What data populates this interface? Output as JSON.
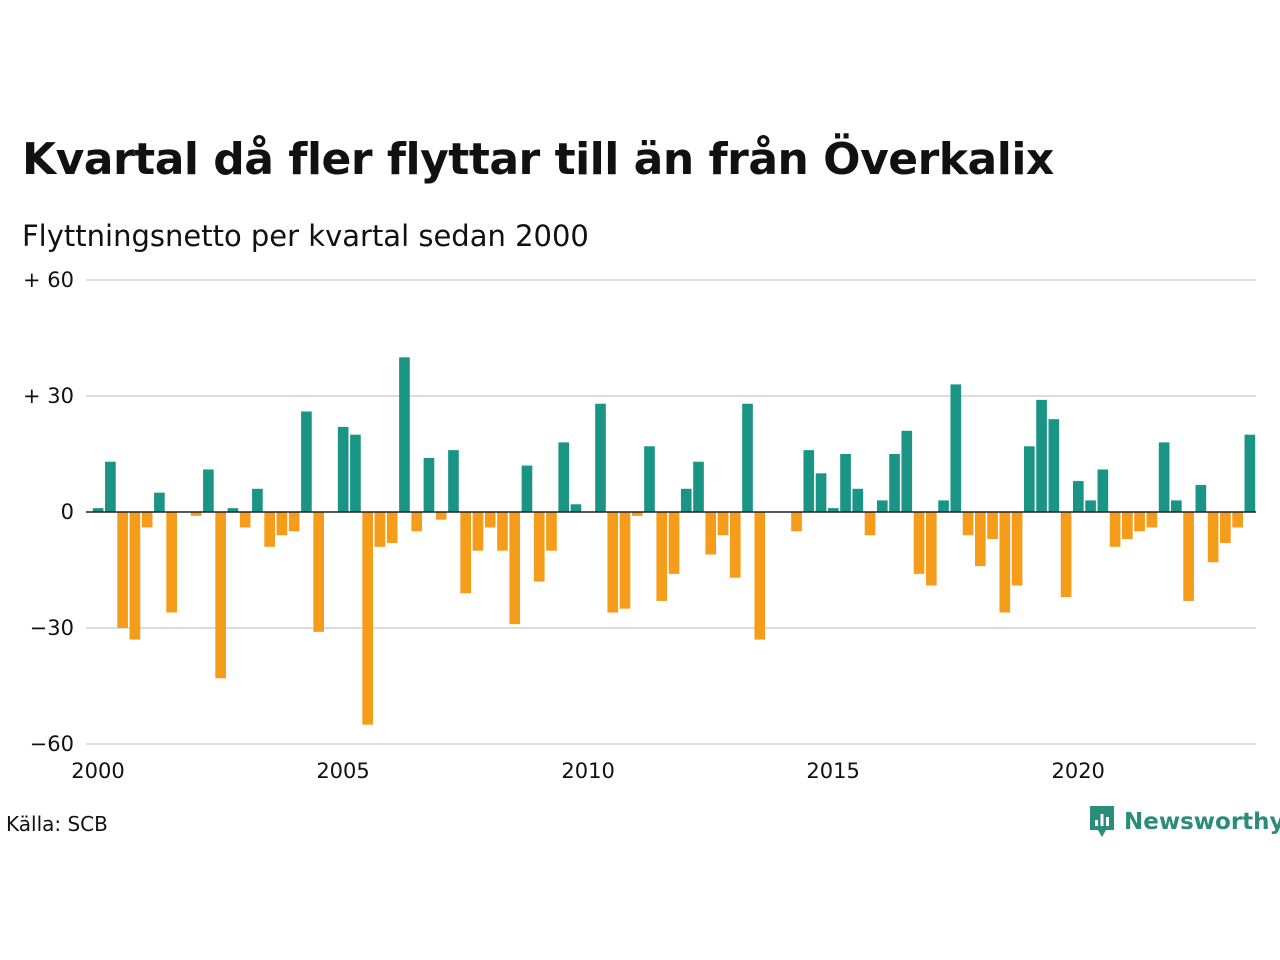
{
  "title": "Kvartal då fler flyttar till än från Överkalix",
  "subtitle": "Flyttningsnetto per kvartal sedan 2000",
  "source": "Källa: SCB",
  "brand": "Newsworthy",
  "logo_icon": "bar-chart-speech-bubble-icon",
  "colors": {
    "positive": "#1a9484",
    "negative": "#f59c1a",
    "grid": "#dddddd",
    "axis": "#222222",
    "brand": "#2b8c7b"
  },
  "chart_data": {
    "type": "bar",
    "title": "Kvartal då fler flyttar till än från Överkalix",
    "subtitle": "Flyttningsnetto per kvartal sedan 2000",
    "xlabel": "",
    "ylabel": "",
    "ylim": [
      -60,
      60
    ],
    "xlim": [
      2000,
      2023.75
    ],
    "grid": true,
    "legend": "none",
    "y_ticks": [
      {
        "value": 60,
        "label": "+ 60"
      },
      {
        "value": 30,
        "label": "+ 30"
      },
      {
        "value": 0,
        "label": "0"
      },
      {
        "value": -30,
        "label": "−30"
      },
      {
        "value": -60,
        "label": "−60"
      }
    ],
    "x_ticks": [
      {
        "value": 2000,
        "label": "2000"
      },
      {
        "value": 2005,
        "label": "2005"
      },
      {
        "value": 2010,
        "label": "2010"
      },
      {
        "value": 2015,
        "label": "2015"
      },
      {
        "value": 2020,
        "label": "2020"
      }
    ],
    "categories": [
      "2000 Q1",
      "2000 Q2",
      "2000 Q3",
      "2000 Q4",
      "2001 Q1",
      "2001 Q2",
      "2001 Q3",
      "2001 Q4",
      "2002 Q1",
      "2002 Q2",
      "2002 Q3",
      "2002 Q4",
      "2003 Q1",
      "2003 Q2",
      "2003 Q3",
      "2003 Q4",
      "2004 Q1",
      "2004 Q2",
      "2004 Q3",
      "2004 Q4",
      "2005 Q1",
      "2005 Q2",
      "2005 Q3",
      "2005 Q4",
      "2006 Q1",
      "2006 Q2",
      "2006 Q3",
      "2006 Q4",
      "2007 Q1",
      "2007 Q2",
      "2007 Q3",
      "2007 Q4",
      "2008 Q1",
      "2008 Q2",
      "2008 Q3",
      "2008 Q4",
      "2009 Q1",
      "2009 Q2",
      "2009 Q3",
      "2009 Q4",
      "2010 Q1",
      "2010 Q2",
      "2010 Q3",
      "2010 Q4",
      "2011 Q1",
      "2011 Q2",
      "2011 Q3",
      "2011 Q4",
      "2012 Q1",
      "2012 Q2",
      "2012 Q3",
      "2012 Q4",
      "2013 Q1",
      "2013 Q2",
      "2013 Q3",
      "2013 Q4",
      "2014 Q1",
      "2014 Q2",
      "2014 Q3",
      "2014 Q4",
      "2015 Q1",
      "2015 Q2",
      "2015 Q3",
      "2015 Q4",
      "2016 Q1",
      "2016 Q2",
      "2016 Q3",
      "2016 Q4",
      "2017 Q1",
      "2017 Q2",
      "2017 Q3",
      "2017 Q4",
      "2018 Q1",
      "2018 Q2",
      "2018 Q3",
      "2018 Q4",
      "2019 Q1",
      "2019 Q2",
      "2019 Q3",
      "2019 Q4",
      "2020 Q1",
      "2020 Q2",
      "2020 Q3",
      "2020 Q4",
      "2021 Q1",
      "2021 Q2",
      "2021 Q3",
      "2021 Q4",
      "2022 Q1",
      "2022 Q2",
      "2022 Q3",
      "2022 Q4",
      "2023 Q1",
      "2023 Q2",
      "2023 Q3",
      "2023 Q4"
    ],
    "values": [
      1,
      13,
      -30,
      -33,
      -4,
      5,
      -26,
      0,
      -1,
      11,
      -43,
      1,
      -4,
      6,
      -9,
      -6,
      -5,
      26,
      -31,
      0,
      22,
      20,
      -55,
      -9,
      -8,
      40,
      -5,
      14,
      -2,
      16,
      -21,
      -10,
      -4,
      -10,
      -29,
      12,
      -18,
      -10,
      18,
      2,
      0,
      28,
      -26,
      -25,
      -1,
      17,
      -23,
      -16,
      6,
      13,
      -11,
      -6,
      -17,
      28,
      -33,
      0,
      0,
      -5,
      16,
      10,
      1,
      15,
      6,
      -6,
      3,
      15,
      21,
      -16,
      -19,
      3,
      33,
      -6,
      -14,
      -7,
      -26,
      -19,
      17,
      29,
      24,
      -22,
      8,
      3,
      11,
      -9,
      -7,
      -5,
      -4,
      18,
      3,
      -23,
      7,
      -13,
      -8,
      -4,
      20,
      0
    ]
  }
}
